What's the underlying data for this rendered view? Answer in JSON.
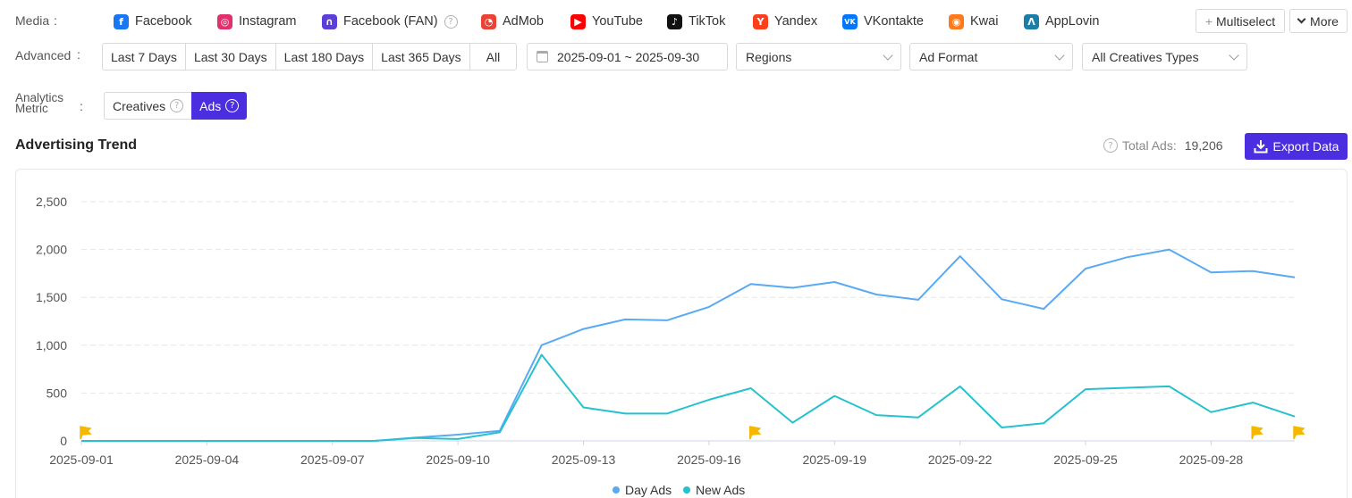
{
  "media": {
    "label": "Media",
    "colon": ":",
    "items": [
      {
        "label": "Facebook",
        "icon": "facebook-icon",
        "color": "#1877f2",
        "glyph": "f"
      },
      {
        "label": "Instagram",
        "icon": "instagram-icon",
        "color": "#e1306c",
        "glyph": "◎"
      },
      {
        "label": "Facebook (FAN)",
        "icon": "facebook-audience-network-icon",
        "color": "#5b3fd6",
        "glyph": "∩"
      },
      {
        "label": "AdMob",
        "icon": "admob-icon",
        "color": "#ea4335",
        "glyph": "◔"
      },
      {
        "label": "YouTube",
        "icon": "youtube-icon",
        "color": "#ff0000",
        "glyph": "▶"
      },
      {
        "label": "TikTok",
        "icon": "tiktok-icon",
        "color": "#111111",
        "glyph": "♪"
      },
      {
        "label": "Yandex",
        "icon": "yandex-icon",
        "color": "#fc3f1d",
        "glyph": "Y"
      },
      {
        "label": "VKontakte",
        "icon": "vkontakte-icon",
        "color": "#0077ff",
        "glyph": "VK"
      },
      {
        "label": "Kwai",
        "icon": "kwai-icon",
        "color": "#ff7a1a",
        "glyph": "◉"
      },
      {
        "label": "AppLovin",
        "icon": "applovin-icon",
        "color": "#1a7fa8",
        "glyph": "Λ"
      }
    ],
    "multiselect_label": "Multiselect",
    "more_label": "More"
  },
  "advanced": {
    "label": "Advanced",
    "colon": ":",
    "ranges": [
      "Last 7 Days",
      "Last 30 Days",
      "Last 180 Days",
      "Last 365 Days",
      "All"
    ],
    "date_range": "2025-09-01 ~ 2025-09-30",
    "regions": "Regions",
    "ad_format": "Ad Format",
    "creative_types": "All Creatives Types"
  },
  "metric": {
    "label_line1": "Analytics",
    "label_line2": "Metric",
    "colon": ":",
    "options": [
      "Creatives",
      "Ads"
    ],
    "selected": "Ads"
  },
  "trend": {
    "title": "Advertising Trend",
    "total_label": "Total Ads:",
    "total_value": "19,206",
    "export_label": "Export Data"
  },
  "colors": {
    "accent": "#4a2ee0",
    "day_ads": "#5aa9f5",
    "new_ads": "#26c1cf",
    "flag": "#f5b800"
  },
  "chart_data": {
    "type": "line",
    "x": [
      "2025-09-01",
      "2025-09-02",
      "2025-09-03",
      "2025-09-04",
      "2025-09-05",
      "2025-09-06",
      "2025-09-07",
      "2025-09-08",
      "2025-09-09",
      "2025-09-10",
      "2025-09-11",
      "2025-09-12",
      "2025-09-13",
      "2025-09-14",
      "2025-09-15",
      "2025-09-16",
      "2025-09-17",
      "2025-09-18",
      "2025-09-19",
      "2025-09-20",
      "2025-09-21",
      "2025-09-22",
      "2025-09-23",
      "2025-09-24",
      "2025-09-25",
      "2025-09-26",
      "2025-09-27",
      "2025-09-28",
      "2025-09-29",
      "2025-09-30"
    ],
    "x_tick_labels": [
      "2025-09-01",
      "2025-09-04",
      "2025-09-07",
      "2025-09-10",
      "2025-09-13",
      "2025-09-16",
      "2025-09-19",
      "2025-09-22",
      "2025-09-25",
      "2025-09-28"
    ],
    "series": [
      {
        "name": "Day Ads",
        "values": [
          0,
          0,
          0,
          0,
          0,
          0,
          0,
          0,
          35,
          65,
          105,
          1000,
          1170,
          1270,
          1260,
          1400,
          1640,
          1600,
          1660,
          1530,
          1475,
          1930,
          1480,
          1380,
          1800,
          1920,
          2000,
          1760,
          1775,
          1710
        ]
      },
      {
        "name": "New Ads",
        "values": [
          0,
          0,
          0,
          0,
          0,
          0,
          0,
          0,
          30,
          20,
          90,
          900,
          350,
          285,
          285,
          430,
          550,
          190,
          470,
          270,
          245,
          570,
          140,
          185,
          540,
          555,
          570,
          300,
          400,
          255
        ]
      }
    ],
    "y_ticks": [
      0,
      500,
      1000,
      1500,
      2000,
      2500
    ],
    "y_tick_labels": [
      "0",
      "500",
      "1,000",
      "1,500",
      "2,000",
      "2,500"
    ],
    "ylim": [
      0,
      2500
    ],
    "grid": "horizontal dashed",
    "legend": "bottom-center",
    "flag_markers": [
      "2025-09-01",
      "2025-09-17",
      "2025-09-29",
      "2025-09-30"
    ]
  }
}
